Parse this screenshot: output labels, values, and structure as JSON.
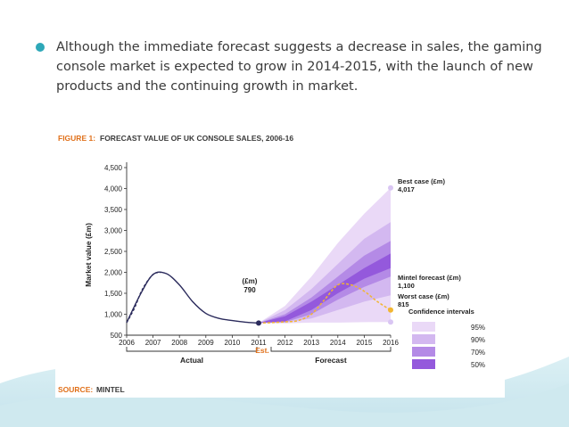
{
  "slide": {
    "bullet_text": "Although the immediate forecast suggests a decrease in sales, the gaming console market is expected to grow in 2014-2015, with the launch of new products and the continuing growth in market."
  },
  "colors": {
    "accent": "#2ea8b8",
    "figure_title": "#e0701a",
    "actual_line": "#2b2b5c",
    "forecast_line": "#f2b632",
    "band_95": "#ead9f7",
    "band_90": "#d3b8f0",
    "band_70": "#b48ae6",
    "band_50": "#9459dc",
    "source": "#e0701a"
  },
  "chart_data": {
    "type": "line",
    "figure_prefix": "FIGURE 1:",
    "figure_title": "FORECAST VALUE OF UK CONSOLE SALES, 2006-16",
    "ylabel": "Market value (£m)",
    "xlabel": "",
    "ylim": [
      500,
      4500
    ],
    "xlim": [
      2006,
      2016
    ],
    "yticks": [
      "4,500",
      "4,000",
      "3,500",
      "3,000",
      "2,500",
      "2,000",
      "1,500",
      "1,000",
      "500"
    ],
    "ytick_values": [
      4500,
      4000,
      3500,
      3000,
      2500,
      2000,
      1500,
      1000,
      500
    ],
    "xticks": [
      "2006",
      "2007",
      "2008",
      "2009",
      "2010",
      "2011",
      "2012",
      "2013",
      "2014",
      "2015",
      "2016"
    ],
    "series": [
      {
        "name": "Actual",
        "style": "solid",
        "x": [
          2006,
          2006.5,
          2007,
          2007.5,
          2008,
          2008.5,
          2009,
          2009.5,
          2010,
          2010.5,
          2011
        ],
        "values": [
          800,
          1450,
          1950,
          1970,
          1700,
          1300,
          1020,
          900,
          850,
          810,
          790
        ]
      },
      {
        "name": "Actual (estimated early)",
        "style": "dashed",
        "x": [
          2006,
          2006.3,
          2006.6,
          2007,
          2007.3
        ],
        "values": [
          800,
          1150,
          1600,
          1950,
          2000
        ]
      },
      {
        "name": "Mintel forecast (£m)",
        "style": "dashed",
        "x": [
          2011,
          2011.5,
          2012,
          2012.5,
          2013,
          2013.5,
          2014,
          2014.5,
          2015,
          2015.5,
          2016
        ],
        "values": [
          790,
          800,
          820,
          850,
          1000,
          1350,
          1700,
          1700,
          1550,
          1300,
          1100
        ]
      }
    ],
    "bands": [
      {
        "name": "95%",
        "x": [
          2011,
          2012,
          2013,
          2014,
          2015,
          2016
        ],
        "lower": [
          790,
          780,
          800,
          800,
          810,
          815
        ],
        "upper": [
          790,
          1200,
          1900,
          2700,
          3400,
          4017
        ]
      },
      {
        "name": "90%",
        "x": [
          2011,
          2012,
          2013,
          2014,
          2015,
          2016
        ],
        "lower": [
          790,
          800,
          900,
          1100,
          1300,
          1450
        ],
        "upper": [
          790,
          1100,
          1600,
          2200,
          2800,
          3200
        ]
      },
      {
        "name": "70%",
        "x": [
          2011,
          2012,
          2013,
          2014,
          2015,
          2016
        ],
        "lower": [
          790,
          810,
          1000,
          1350,
          1650,
          1900
        ],
        "upper": [
          790,
          1000,
          1400,
          1900,
          2400,
          2750
        ]
      },
      {
        "name": "50%",
        "x": [
          2011,
          2012,
          2013,
          2014,
          2015,
          2016
        ],
        "lower": [
          790,
          830,
          1100,
          1500,
          1850,
          2100
        ],
        "upper": [
          790,
          950,
          1300,
          1700,
          2100,
          2450
        ]
      }
    ],
    "points": [
      {
        "label": "2011",
        "x": 2011,
        "y": 790
      },
      {
        "label": "Best case",
        "x": 2016,
        "y": 4017
      },
      {
        "label": "Mintel forecast",
        "x": 2016,
        "y": 1100
      },
      {
        "label": "Worst case",
        "x": 2016,
        "y": 815
      }
    ],
    "annotations": {
      "est_2011_unit": "(£m)",
      "est_2011_value": "790",
      "best_case_label": "Best case (£m)",
      "best_case_value": "4,017",
      "mintel_label": "Mintel forecast (£m)",
      "mintel_value": "1,100",
      "worst_label": "Worst case (£m)",
      "worst_value": "815",
      "actual_label": "Actual",
      "est_label": "Est.",
      "forecast_label": "Forecast"
    },
    "legend": {
      "title": "Confidence intervals",
      "placement": "right",
      "items": [
        "95%",
        "90%",
        "70%",
        "50%"
      ]
    },
    "source_prefix": "SOURCE:",
    "source": "MINTEL"
  }
}
